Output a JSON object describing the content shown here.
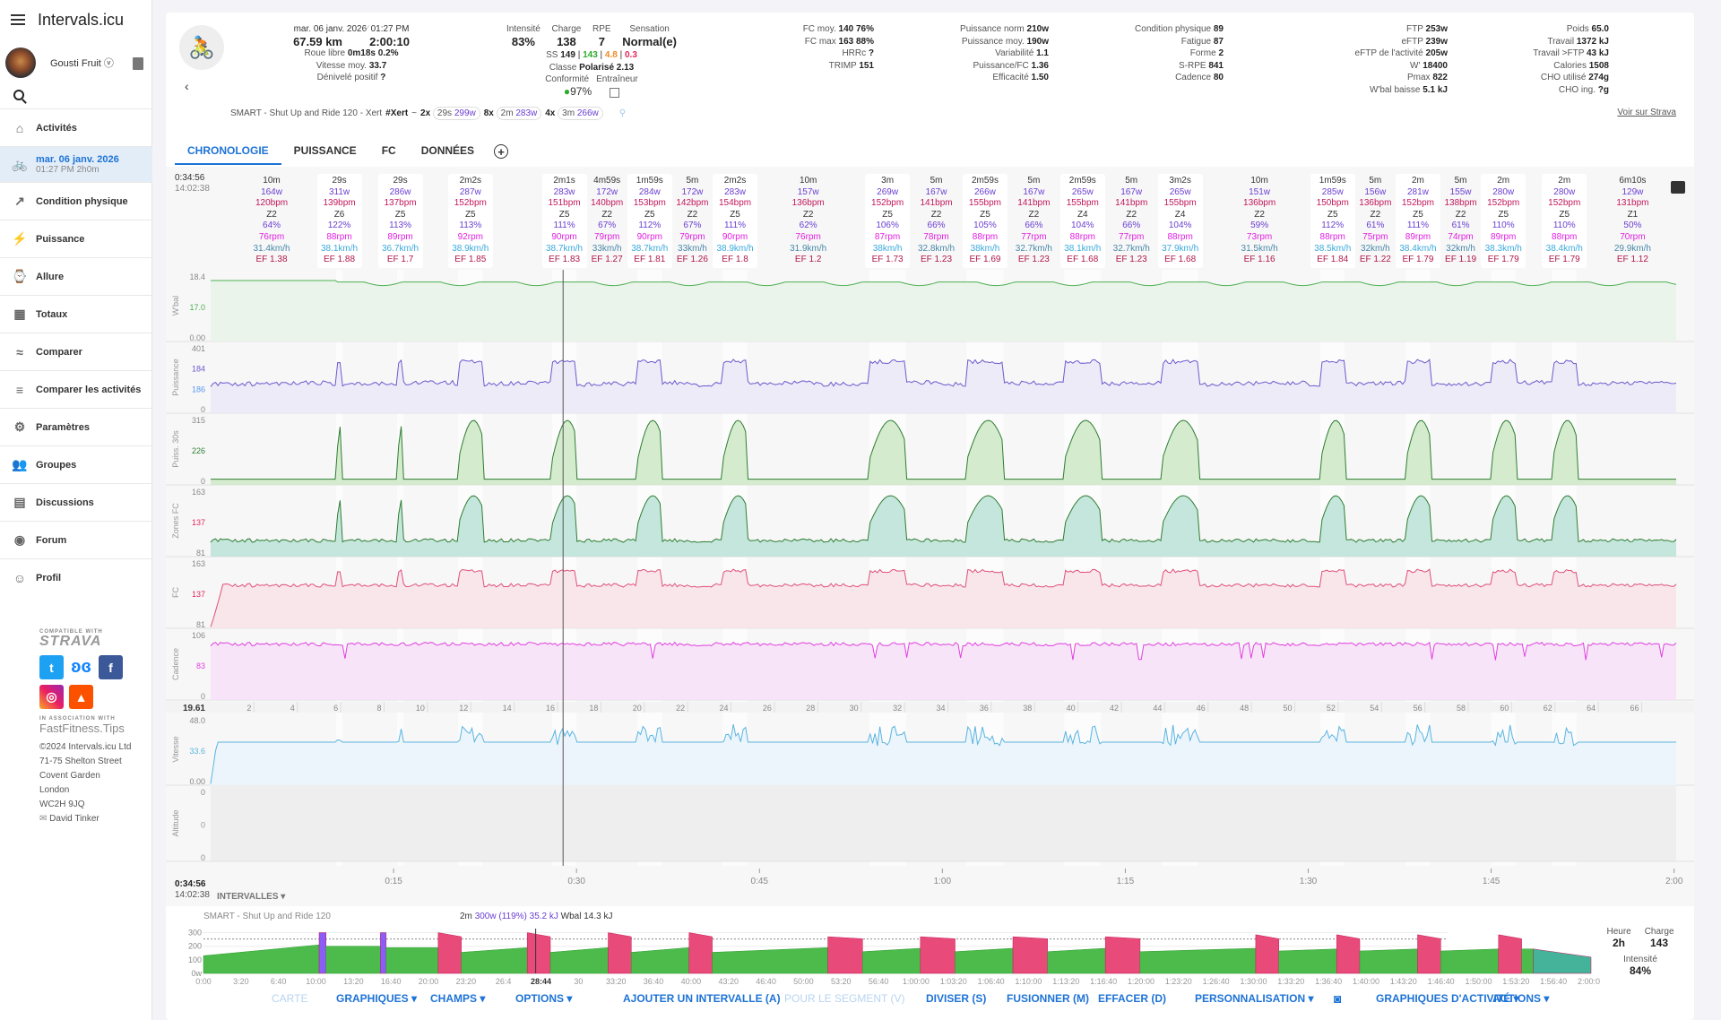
{
  "app": {
    "title": "Intervals.icu",
    "user": "Gousti Fruit ⓥ"
  },
  "sidebar": {
    "items": [
      {
        "label": "Activités",
        "icon": "home-icon"
      },
      {
        "label": "mar. 06 janv. 2026",
        "sub": "01:27 PM   2h0m",
        "icon": "bike-icon"
      },
      {
        "label": "Condition physique",
        "icon": "trend-icon"
      },
      {
        "label": "Puissance",
        "icon": "bolt-icon"
      },
      {
        "label": "Allure",
        "icon": "watch-icon"
      },
      {
        "label": "Totaux",
        "icon": "table-icon"
      },
      {
        "label": "Comparer",
        "icon": "compare-icon"
      },
      {
        "label": "Comparer les activités",
        "icon": "search-list-icon"
      },
      {
        "label": "Paramètres",
        "icon": "gear-icon"
      },
      {
        "label": "Groupes",
        "icon": "people-icon"
      },
      {
        "label": "Discussions",
        "icon": "chat-icon"
      },
      {
        "label": "Forum",
        "icon": "discourse-icon"
      },
      {
        "label": "Profil",
        "icon": "face-icon"
      }
    ],
    "footer": {
      "compat": "COMPATIBLE WITH",
      "strava": "STRAVA",
      "assoc": "IN ASSOCIATION WITH",
      "ff": "FastFitness.Tips",
      "addr": [
        "©2024 Intervals.icu Ltd",
        "71-75 Shelton Street",
        "Covent Garden",
        "London",
        "WC2H 9JQ"
      ],
      "contact": "David Tinker"
    }
  },
  "header": {
    "date": "mar. 06 janv. 2026",
    "time": "01:27 PM",
    "distance": "67.59 km",
    "duration": "2:00:10",
    "roue_libre_l": "Roue libre",
    "roue_libre": "0m18s 0.2%",
    "vitesse_l": "Vitesse moy.",
    "vitesse": "33.7",
    "deniv_l": "Dénivelé positif",
    "deniv": "?",
    "intensite_l": "Intensité",
    "intensite": "83%",
    "charge_l": "Charge",
    "charge": "138",
    "rpe_l": "RPE",
    "rpe": "7",
    "sensation_l": "Sensation",
    "sensation": "Normal(e)",
    "ss_l": "SS",
    "ss": "149",
    "ss2": "143",
    "ss3": "4.8",
    "ss4": "0.3",
    "classe_l": "Classe",
    "classe": "Polarisé 2.13",
    "conformite_l": "Conformité",
    "conformite": "97%",
    "entraineur_l": "Entraîneur",
    "col1": [
      {
        "l": "FC moy.",
        "v": "140 76%"
      },
      {
        "l": "FC max",
        "v": "163 88%"
      },
      {
        "l": "HRRc",
        "v": "?"
      },
      {
        "l": "TRIMP",
        "v": "151"
      }
    ],
    "col2": [
      {
        "l": "Puissance norm",
        "v": "210w"
      },
      {
        "l": "Puissance moy.",
        "v": "190w"
      },
      {
        "l": "Variabilité",
        "v": "1.1"
      },
      {
        "l": "Puissance/FC",
        "v": "1.36"
      },
      {
        "l": "Efficacité",
        "v": "1.50"
      }
    ],
    "col3": [
      {
        "l": "Condition physique",
        "v": "89"
      },
      {
        "l": "Fatigue",
        "v": "87"
      },
      {
        "l": "Forme",
        "v": "2"
      },
      {
        "l": "S-RPE",
        "v": "841"
      },
      {
        "l": "Cadence",
        "v": "80"
      }
    ],
    "col4": [
      {
        "l": "FTP",
        "v": "253w"
      },
      {
        "l": "eFTP",
        "v": "239w"
      },
      {
        "l": "eFTP de l'activité",
        "v": "205w"
      },
      {
        "l": "W'",
        "v": "18400"
      },
      {
        "l": "Pmax",
        "v": "822"
      },
      {
        "l": "W'bal baisse",
        "v": "5.1 kJ"
      }
    ],
    "col5": [
      {
        "l": "Poids",
        "v": "65.0"
      },
      {
        "l": "Travail",
        "v": "1372 kJ"
      },
      {
        "l": "Travail >FTP",
        "v": "43 kJ"
      },
      {
        "l": "Calories",
        "v": "1508"
      },
      {
        "l": "CHO utilisé",
        "v": "274g"
      },
      {
        "l": "CHO ing.",
        "v": "?g"
      }
    ],
    "workout_name": "SMART - Shut Up and Ride 120 - Xert",
    "tag": "#Xert",
    "tilde": "~",
    "groups": [
      {
        "n": "2x",
        "d": "29s",
        "p": "299w"
      },
      {
        "n": "8x",
        "d": "2m",
        "p": "283w"
      },
      {
        "n": "4x",
        "d": "3m",
        "p": "266w"
      }
    ],
    "strava_link": "Voir sur Strava"
  },
  "tabs": [
    "CHRONOLOGIE",
    "PUISSANCE",
    "FC",
    "DONNÉES"
  ],
  "cursor": {
    "elapsed": "0:34:56",
    "clock": "14:02:38"
  },
  "intervals": [
    {
      "d": "10m",
      "p": "164w",
      "h": "120bpm",
      "z": "Z2",
      "pc": "64%",
      "c": "76rpm",
      "s": "31.4km/h",
      "ef": "EF 1.38",
      "hl": false
    },
    {
      "d": "29s",
      "p": "311w",
      "h": "139bpm",
      "z": "Z6",
      "pc": "122%",
      "c": "88rpm",
      "s": "38.1km/h",
      "ef": "EF 1.88",
      "hl": true
    },
    {
      "d": "29s",
      "p": "286w",
      "h": "137bpm",
      "z": "Z5",
      "pc": "113%",
      "c": "89rpm",
      "s": "36.7km/h",
      "ef": "EF 1.7",
      "hl": true
    },
    {
      "d": "2m2s",
      "p": "287w",
      "h": "152bpm",
      "z": "Z5",
      "pc": "113%",
      "c": "92rpm",
      "s": "38.9km/h",
      "ef": "EF 1.85",
      "hl": true
    },
    {
      "d": "2m1s",
      "p": "283w",
      "h": "151bpm",
      "z": "Z5",
      "pc": "111%",
      "c": "90rpm",
      "s": "38.7km/h",
      "ef": "EF 1.83",
      "hl": true
    },
    {
      "d": "4m59s",
      "p": "172w",
      "h": "140bpm",
      "z": "Z2",
      "pc": "67%",
      "c": "79rpm",
      "s": "33km/h",
      "ef": "EF 1.27",
      "hl": false
    },
    {
      "d": "1m59s",
      "p": "284w",
      "h": "153bpm",
      "z": "Z5",
      "pc": "112%",
      "c": "90rpm",
      "s": "38.7km/h",
      "ef": "EF 1.81",
      "hl": true
    },
    {
      "d": "5m",
      "p": "172w",
      "h": "142bpm",
      "z": "Z2",
      "pc": "67%",
      "c": "79rpm",
      "s": "33km/h",
      "ef": "EF 1.26",
      "hl": false
    },
    {
      "d": "2m2s",
      "p": "283w",
      "h": "154bpm",
      "z": "Z5",
      "pc": "111%",
      "c": "90rpm",
      "s": "38.9km/h",
      "ef": "EF 1.8",
      "hl": true
    },
    {
      "d": "10m",
      "p": "157w",
      "h": "136bpm",
      "z": "Z2",
      "pc": "62%",
      "c": "76rpm",
      "s": "31.9km/h",
      "ef": "EF 1.2",
      "hl": false
    },
    {
      "d": "3m",
      "p": "269w",
      "h": "152bpm",
      "z": "Z5",
      "pc": "106%",
      "c": "87rpm",
      "s": "38km/h",
      "ef": "EF 1.73",
      "hl": true
    },
    {
      "d": "5m",
      "p": "167w",
      "h": "141bpm",
      "z": "Z2",
      "pc": "66%",
      "c": "78rpm",
      "s": "32.8km/h",
      "ef": "EF 1.23",
      "hl": false
    },
    {
      "d": "2m59s",
      "p": "266w",
      "h": "155bpm",
      "z": "Z5",
      "pc": "105%",
      "c": "88rpm",
      "s": "38km/h",
      "ef": "EF 1.69",
      "hl": true
    },
    {
      "d": "5m",
      "p": "167w",
      "h": "141bpm",
      "z": "Z2",
      "pc": "66%",
      "c": "77rpm",
      "s": "32.7km/h",
      "ef": "EF 1.23",
      "hl": false
    },
    {
      "d": "2m59s",
      "p": "265w",
      "h": "155bpm",
      "z": "Z4",
      "pc": "104%",
      "c": "88rpm",
      "s": "38.1km/h",
      "ef": "EF 1.68",
      "hl": true
    },
    {
      "d": "5m",
      "p": "167w",
      "h": "141bpm",
      "z": "Z2",
      "pc": "66%",
      "c": "77rpm",
      "s": "32.7km/h",
      "ef": "EF 1.23",
      "hl": false
    },
    {
      "d": "3m2s",
      "p": "265w",
      "h": "155bpm",
      "z": "Z4",
      "pc": "104%",
      "c": "88rpm",
      "s": "37.9km/h",
      "ef": "EF 1.68",
      "hl": true
    },
    {
      "d": "10m",
      "p": "151w",
      "h": "136bpm",
      "z": "Z2",
      "pc": "59%",
      "c": "73rpm",
      "s": "31.5km/h",
      "ef": "EF 1.16",
      "hl": false
    },
    {
      "d": "1m59s",
      "p": "285w",
      "h": "150bpm",
      "z": "Z5",
      "pc": "112%",
      "c": "88rpm",
      "s": "38.5km/h",
      "ef": "EF 1.84",
      "hl": true
    },
    {
      "d": "5m",
      "p": "156w",
      "h": "136bpm",
      "z": "Z2",
      "pc": "61%",
      "c": "75rpm",
      "s": "32km/h",
      "ef": "EF 1.22",
      "hl": false
    },
    {
      "d": "2m",
      "p": "281w",
      "h": "152bpm",
      "z": "Z5",
      "pc": "111%",
      "c": "89rpm",
      "s": "38.4km/h",
      "ef": "EF 1.79",
      "hl": true
    },
    {
      "d": "5m",
      "p": "155w",
      "h": "138bpm",
      "z": "Z2",
      "pc": "61%",
      "c": "74rpm",
      "s": "32km/h",
      "ef": "EF 1.19",
      "hl": false
    },
    {
      "d": "2m",
      "p": "280w",
      "h": "152bpm",
      "z": "Z5",
      "pc": "110%",
      "c": "89rpm",
      "s": "38.3km/h",
      "ef": "EF 1.79",
      "hl": true
    },
    {
      "d": "2m",
      "p": "280w",
      "h": "152bpm",
      "z": "Z5",
      "pc": "110%",
      "c": "88rpm",
      "s": "38.4km/h",
      "ef": "EF 1.79",
      "hl": true
    },
    {
      "d": "6m10s",
      "p": "129w",
      "h": "131bpm",
      "z": "Z1",
      "pc": "50%",
      "c": "70rpm",
      "s": "29.9km/h",
      "ef": "EF 1.12",
      "hl": false
    }
  ],
  "panels": [
    {
      "name": "W'bal",
      "ticks": [
        "18.4",
        "17.0",
        "0.00"
      ],
      "color": "#4caf50"
    },
    {
      "name": "Puissance",
      "ticks": [
        "401",
        "184",
        "186",
        "0"
      ],
      "color": "#6a5acd"
    },
    {
      "name": "Puiss. 30s",
      "ticks": [
        "315",
        "226",
        "0"
      ],
      "color": "#2e7d32"
    },
    {
      "name": "Zones FC",
      "ticks": [
        "163",
        "137",
        "81"
      ],
      "color": "#2e7d32"
    },
    {
      "name": "FC",
      "ticks": [
        "163",
        "137",
        "81"
      ],
      "color": "#e0507a"
    },
    {
      "name": "Cadence",
      "ticks": [
        "106",
        "83",
        "0"
      ],
      "color": "#e040e0"
    },
    {
      "name": "Vitesse",
      "ticks": [
        "48.0",
        "33.6",
        "0.00"
      ],
      "color": "#5ab4e0"
    },
    {
      "name": "Altitude",
      "ticks": [
        "0",
        "0",
        "0"
      ],
      "color": "#999"
    }
  ],
  "distance_axis": {
    "start": "19.61",
    "ticks": [
      "2",
      "4",
      "6",
      "8",
      "10",
      "12",
      "14",
      "16",
      "18",
      "20",
      "22",
      "24",
      "26",
      "28",
      "30",
      "32",
      "34",
      "36",
      "38",
      "40",
      "42",
      "44",
      "46",
      "48",
      "50",
      "52",
      "54",
      "56",
      "58",
      "60",
      "62",
      "64",
      "66"
    ]
  },
  "time_axis": [
    "0:15",
    "0:30",
    "0:45",
    "1:00",
    "1:15",
    "1:30",
    "1:45",
    "2:00"
  ],
  "intervals_btn": "INTERVALLES",
  "workout": {
    "name": "SMART - Shut Up and Ride 120",
    "sel_d": "2m",
    "sel_p": "300w (119%) 35.2 kJ",
    "sel_w": "Wbal 14.3 kJ",
    "yticks": [
      "300",
      "200",
      "100",
      "0w"
    ],
    "xticks": [
      "0:00",
      "3:20",
      "6:40",
      "10:00",
      "13:20",
      "16:40",
      "20:00",
      "23:20",
      "26:4",
      "28:44",
      "30",
      "33:20",
      "36:40",
      "40:00",
      "43:20",
      "46:40",
      "50:00",
      "53:20",
      "56:40",
      "1:00:00",
      "1:03:20",
      "1:06:40",
      "1:10:00",
      "1:13:20",
      "1:16:40",
      "1:20:00",
      "1:23:20",
      "1:26:40",
      "1:30:00",
      "1:33:20",
      "1:36:40",
      "1:40:00",
      "1:43:20",
      "1:46:40",
      "1:50:00",
      "1:53:20",
      "1:56:40",
      "2:00:00"
    ],
    "summary": {
      "heure_l": "Heure",
      "heure": "2h",
      "charge_l": "Charge",
      "charge": "143",
      "int_l": "Intensité",
      "int": "84%"
    }
  },
  "actions": [
    {
      "label": "CARTE",
      "dis": true
    },
    {
      "label": "GRAPHIQUES ▾"
    },
    {
      "label": "CHAMPS ▾"
    },
    {
      "label": "OPTIONS ▾"
    },
    {
      "label": "AJOUTER UN INTERVALLE (A)"
    },
    {
      "label": "POUR LE SEGMENT (V)",
      "dis": true
    },
    {
      "label": "DIVISER (S)"
    },
    {
      "label": "FUSIONNER (M)"
    },
    {
      "label": "EFFACER (D)"
    },
    {
      "label": "PERSONNALISATION ▾"
    },
    {
      "label": "GRAPHIQUES D'ACTIVITÉ ▾"
    },
    {
      "label": "ACTIONS ▾"
    }
  ]
}
